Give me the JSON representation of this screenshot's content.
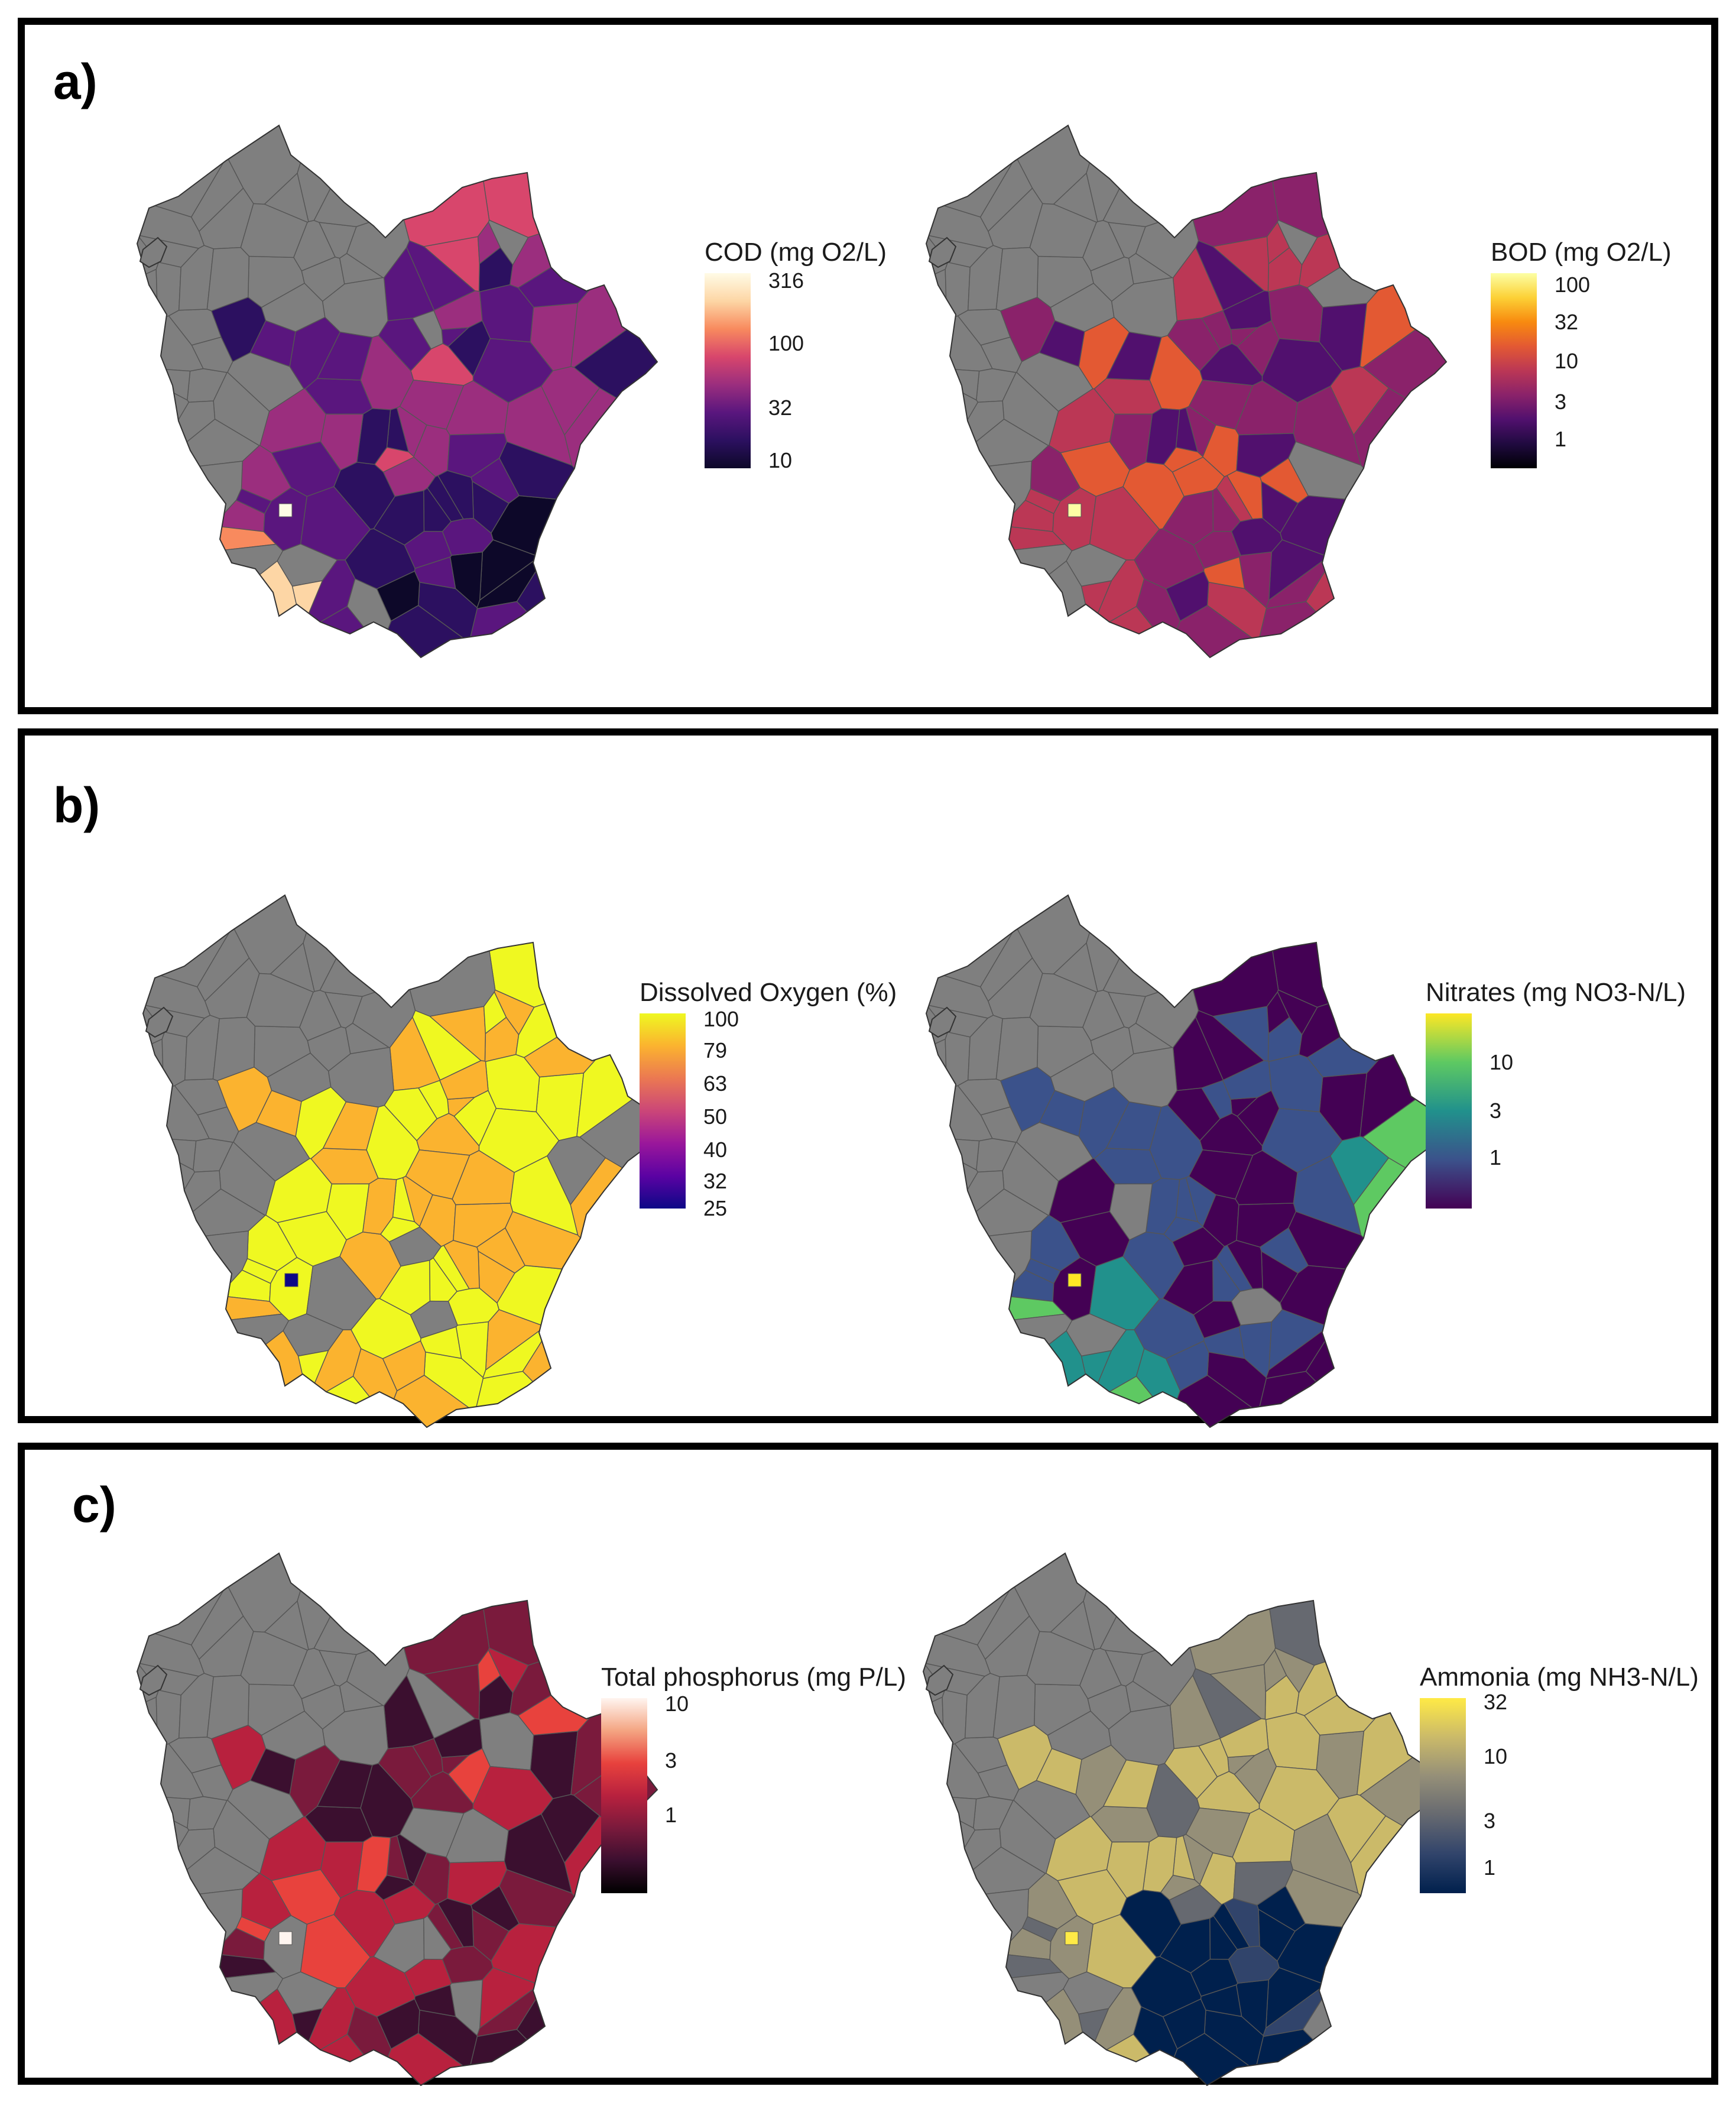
{
  "panels": [
    {
      "label": "a)",
      "maps": [
        {
          "legend_title": "COD (mg O2/L)",
          "colors": [
            "#0d0829",
            "#2c1060",
            "#5a167e",
            "#9b2e7e",
            "#d8466c",
            "#f88a5e",
            "#fdd6a5",
            "#fffbe6"
          ],
          "ticks": [
            {
              "label": "316",
              "frac": 0.04
            },
            {
              "label": "100",
              "frac": 0.36
            },
            {
              "label": "32",
              "frac": 0.69
            },
            {
              "label": "10",
              "frac": 0.96
            }
          ],
          "highlight": "#fffbe6",
          "profile": "cod"
        },
        {
          "legend_title": "BOD (mg O2/L)",
          "colors": [
            "#000004",
            "#200a40",
            "#51106e",
            "#8a226a",
            "#bb3755",
            "#e35933",
            "#f88a0f",
            "#fcd136",
            "#fcffa4"
          ],
          "ticks": [
            {
              "label": "100",
              "frac": 0.06
            },
            {
              "label": "32",
              "frac": 0.25
            },
            {
              "label": "10",
              "frac": 0.45
            },
            {
              "label": "3",
              "frac": 0.66
            },
            {
              "label": "1",
              "frac": 0.85
            }
          ],
          "highlight": "#fcffa4",
          "profile": "bod"
        }
      ]
    },
    {
      "label": "b)",
      "maps": [
        {
          "legend_title": "Dissolved Oxygen (%)",
          "colors": [
            "#0d0887",
            "#5b02a3",
            "#9a179b",
            "#cb4678",
            "#eb7852",
            "#fbb32f",
            "#eff821"
          ],
          "ticks": [
            {
              "label": "100",
              "frac": 0.03
            },
            {
              "label": "79",
              "frac": 0.19
            },
            {
              "label": "63",
              "frac": 0.36
            },
            {
              "label": "50",
              "frac": 0.53
            },
            {
              "label": "40",
              "frac": 0.7
            },
            {
              "label": "32",
              "frac": 0.86
            },
            {
              "label": "25",
              "frac": 1.0
            }
          ],
          "highlight": "#0d0887",
          "profile": "do"
        },
        {
          "legend_title": "Nitrates (mg NO3-N/L)",
          "colors": [
            "#440154",
            "#3b528b",
            "#21918c",
            "#5ec962",
            "#fde725"
          ],
          "ticks": [
            {
              "label": "10",
              "frac": 0.25
            },
            {
              "label": "3",
              "frac": 0.5
            },
            {
              "label": "1",
              "frac": 0.74
            }
          ],
          "highlight": "#fde725",
          "profile": "no3"
        }
      ]
    },
    {
      "label": "c)",
      "maps": [
        {
          "legend_title": "Total phosphorus (mg P/L)",
          "colors": [
            "#000000",
            "#3b0f2f",
            "#7a1a3c",
            "#b8213e",
            "#e8423d",
            "#f4a582",
            "#fff5f0"
          ],
          "ticks": [
            {
              "label": "10",
              "frac": 0.03
            },
            {
              "label": "3",
              "frac": 0.32
            },
            {
              "label": "1",
              "frac": 0.6
            }
          ],
          "highlight": "#fff5f0",
          "profile": "tp"
        },
        {
          "legend_title": "Ammonia (mg NH3-N/L)",
          "colors": [
            "#00204d",
            "#31446b",
            "#666970",
            "#958f78",
            "#cbba69",
            "#ffea46"
          ],
          "ticks": [
            {
              "label": "32",
              "frac": 0.02
            },
            {
              "label": "10",
              "frac": 0.3
            },
            {
              "label": "3",
              "frac": 0.63
            },
            {
              "label": "1",
              "frac": 0.87
            }
          ],
          "highlight": "#ffea46",
          "profile": "nh3"
        }
      ]
    }
  ],
  "grey_fill": "#7f7f7f"
}
